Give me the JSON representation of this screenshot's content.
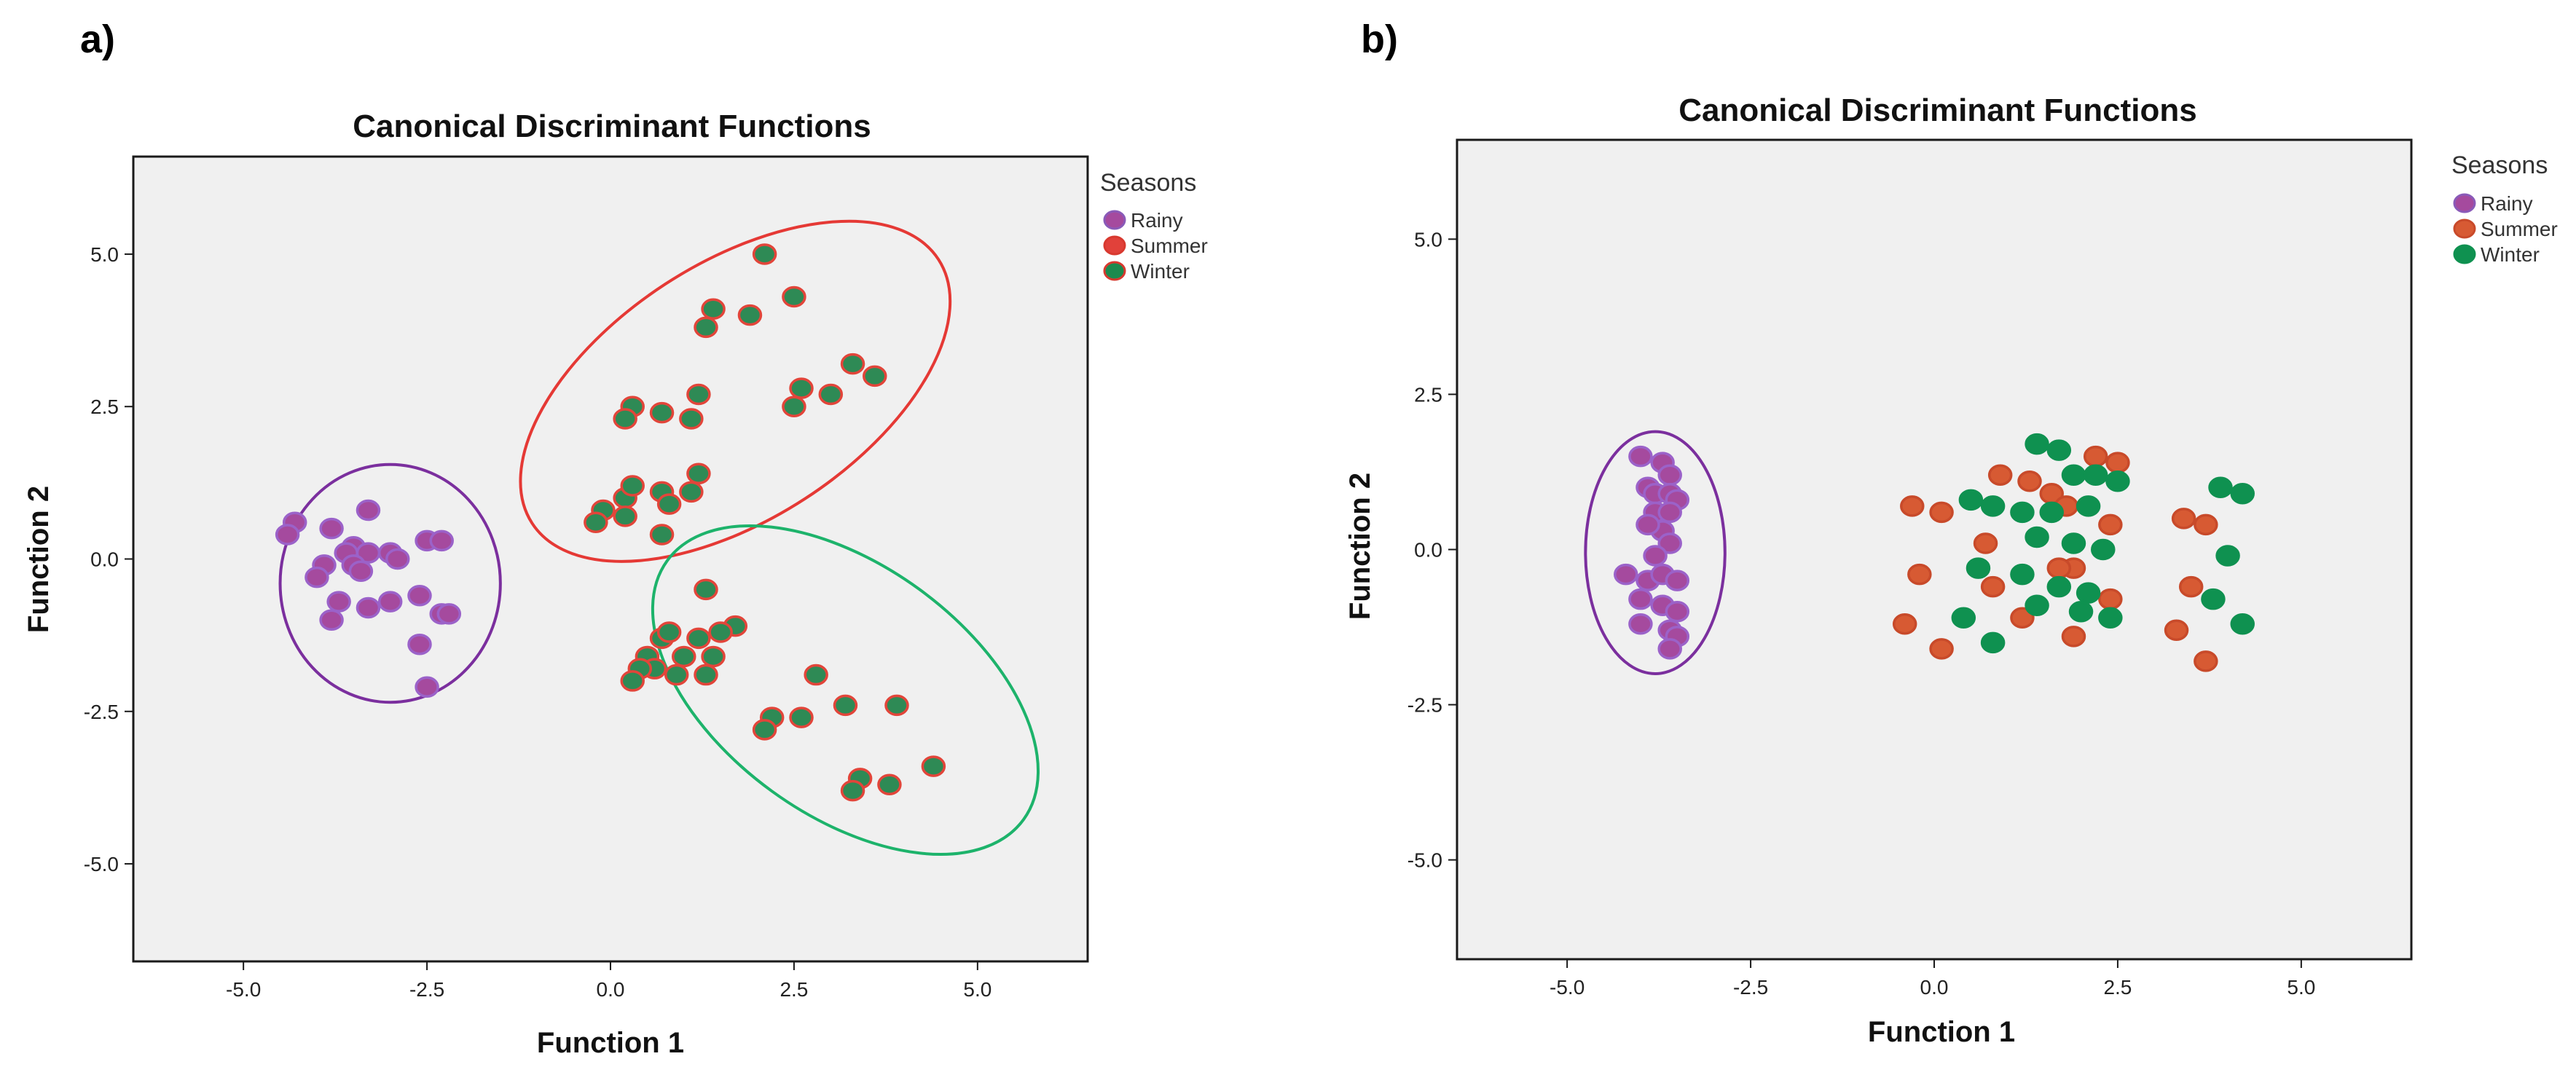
{
  "chart_data": [
    {
      "type": "scatter",
      "panel_label": "a)",
      "title": "Canonical Discriminant Functions",
      "xlabel": "Function 1",
      "ylabel": "Function 2",
      "xlim": [
        -6.5,
        6.5
      ],
      "ylim": [
        -6.6,
        6.6
      ],
      "xticks": [
        -5.0,
        -2.5,
        0.0,
        2.5,
        5.0
      ],
      "yticks": [
        5.0,
        2.5,
        0.0,
        -2.5,
        -5.0
      ],
      "tick_labels_x": [
        "-5.0",
        "-2.5",
        "0.0",
        "2.5",
        "5.0"
      ],
      "tick_labels_y": [
        "5.0",
        "2.5",
        "0.0",
        "-2.5",
        "-5.0"
      ],
      "legend": {
        "title": "Seasons",
        "position": "right",
        "entries": [
          {
            "label": "Rainy",
            "fill": "#a54a9e",
            "stroke": "#8a5ab8"
          },
          {
            "label": "Summer",
            "fill": "#e1413a",
            "stroke": "#d8392f"
          },
          {
            "label": "Winter",
            "fill": "#1d8a4e",
            "stroke": "#1a7a3f"
          }
        ]
      },
      "series": [
        {
          "name": "Rainy",
          "fill": "#a54a9e",
          "stroke": "#9b62c9",
          "points": [
            [
              -4.3,
              0.6
            ],
            [
              -4.4,
              0.4
            ],
            [
              -3.8,
              0.5
            ],
            [
              -3.3,
              0.8
            ],
            [
              -3.5,
              0.2
            ],
            [
              -3.6,
              0.1
            ],
            [
              -3.3,
              0.1
            ],
            [
              -3.0,
              0.1
            ],
            [
              -2.9,
              0.0
            ],
            [
              -2.5,
              0.3
            ],
            [
              -2.3,
              0.3
            ],
            [
              -3.9,
              -0.1
            ],
            [
              -3.5,
              -0.1
            ],
            [
              -3.4,
              -0.2
            ],
            [
              -4.0,
              -0.3
            ],
            [
              -3.7,
              -0.7
            ],
            [
              -3.3,
              -0.8
            ],
            [
              -3.0,
              -0.7
            ],
            [
              -2.6,
              -0.6
            ],
            [
              -2.3,
              -0.9
            ],
            [
              -2.2,
              -0.9
            ],
            [
              -3.8,
              -1.0
            ],
            [
              -2.6,
              -1.4
            ],
            [
              -2.5,
              -2.1
            ]
          ]
        },
        {
          "name": "Summer",
          "fill": "#2e8a55",
          "stroke": "#e2453a",
          "points": [
            [
              2.1,
              5.0
            ],
            [
              2.5,
              4.3
            ],
            [
              1.4,
              4.1
            ],
            [
              1.3,
              3.8
            ],
            [
              1.9,
              4.0
            ],
            [
              3.3,
              3.2
            ],
            [
              3.6,
              3.0
            ],
            [
              2.6,
              2.8
            ],
            [
              3.0,
              2.7
            ],
            [
              2.5,
              2.5
            ],
            [
              0.3,
              2.5
            ],
            [
              0.2,
              2.3
            ],
            [
              0.7,
              2.4
            ],
            [
              1.2,
              2.7
            ],
            [
              1.1,
              2.3
            ],
            [
              -0.1,
              0.8
            ],
            [
              0.2,
              1.0
            ],
            [
              0.3,
              1.2
            ],
            [
              0.7,
              1.1
            ],
            [
              1.1,
              1.1
            ],
            [
              1.2,
              1.4
            ],
            [
              0.8,
              0.9
            ],
            [
              -0.2,
              0.6
            ],
            [
              0.2,
              0.7
            ],
            [
              0.7,
              0.4
            ]
          ]
        },
        {
          "name": "Winter",
          "fill": "#2e8a55",
          "stroke": "#e2453a",
          "points": [
            [
              1.3,
              -0.5
            ],
            [
              0.7,
              -1.3
            ],
            [
              0.8,
              -1.2
            ],
            [
              1.2,
              -1.3
            ],
            [
              1.7,
              -1.1
            ],
            [
              1.5,
              -1.2
            ],
            [
              0.5,
              -1.6
            ],
            [
              1.0,
              -1.6
            ],
            [
              0.6,
              -1.8
            ],
            [
              1.4,
              -1.6
            ],
            [
              0.4,
              -1.8
            ],
            [
              0.3,
              -2.0
            ],
            [
              0.9,
              -1.9
            ],
            [
              1.3,
              -1.9
            ],
            [
              2.8,
              -1.9
            ],
            [
              3.2,
              -2.4
            ],
            [
              3.9,
              -2.4
            ],
            [
              2.2,
              -2.6
            ],
            [
              2.6,
              -2.6
            ],
            [
              2.1,
              -2.8
            ],
            [
              3.4,
              -3.6
            ],
            [
              3.8,
              -3.7
            ],
            [
              4.4,
              -3.4
            ],
            [
              3.3,
              -3.8
            ]
          ]
        }
      ],
      "ellipses": [
        {
          "group": "Rainy",
          "stroke": "#7b2f9e",
          "center": [
            -3.0,
            -0.4
          ],
          "radii": [
            1.5,
            1.95
          ],
          "rotation_deg": 0
        },
        {
          "group": "Summer",
          "stroke": "#e53935",
          "center": [
            1.7,
            2.75
          ],
          "radii": [
            3.3,
            2.1
          ],
          "rotation_deg": 33
        },
        {
          "group": "Winter",
          "stroke": "#1db36b",
          "center": [
            3.2,
            -2.15
          ],
          "radii": [
            3.0,
            2.05
          ],
          "rotation_deg": -36
        }
      ]
    },
    {
      "type": "scatter",
      "panel_label": "b)",
      "title": "Canonical Discriminant Functions",
      "xlabel": "Function 1",
      "ylabel": "Function 2",
      "xlim": [
        -6.5,
        6.5
      ],
      "ylim": [
        -6.6,
        6.6
      ],
      "xticks": [
        -5.0,
        -2.5,
        0.0,
        2.5,
        5.0
      ],
      "yticks": [
        5.0,
        2.5,
        0.0,
        -2.5,
        -5.0
      ],
      "tick_labels_x": [
        "-5.0",
        "-2.5",
        "0.0",
        "2.5",
        "5.0"
      ],
      "tick_labels_y": [
        "5.0",
        "2.5",
        "0.0",
        "-2.5",
        "-5.0"
      ],
      "legend": {
        "title": "Seasons",
        "position": "right",
        "entries": [
          {
            "label": "Rainy",
            "fill": "#a54a9e",
            "stroke": "#8a5ab8"
          },
          {
            "label": "Summer",
            "fill": "#d75a33",
            "stroke": "#c84a2a"
          },
          {
            "label": "Winter",
            "fill": "#0f9150",
            "stroke": "#0f9150"
          }
        ]
      },
      "series": [
        {
          "name": "Rainy",
          "fill": "#a54a9e",
          "stroke": "#9b62c9",
          "points": [
            [
              -4.0,
              1.5
            ],
            [
              -3.7,
              1.4
            ],
            [
              -3.6,
              1.2
            ],
            [
              -3.9,
              1.0
            ],
            [
              -3.8,
              0.9
            ],
            [
              -3.6,
              0.9
            ],
            [
              -3.5,
              0.8
            ],
            [
              -3.8,
              0.6
            ],
            [
              -3.6,
              0.6
            ],
            [
              -3.7,
              0.3
            ],
            [
              -3.9,
              0.4
            ],
            [
              -3.6,
              0.1
            ],
            [
              -3.8,
              -0.1
            ],
            [
              -4.2,
              -0.4
            ],
            [
              -3.9,
              -0.5
            ],
            [
              -3.7,
              -0.4
            ],
            [
              -3.5,
              -0.5
            ],
            [
              -4.0,
              -0.8
            ],
            [
              -3.7,
              -0.9
            ],
            [
              -3.5,
              -1.0
            ],
            [
              -4.0,
              -1.2
            ],
            [
              -3.6,
              -1.3
            ],
            [
              -3.5,
              -1.4
            ],
            [
              -3.6,
              -1.6
            ]
          ]
        },
        {
          "name": "Summer",
          "fill": "#d75a33",
          "stroke": "#c84a2a",
          "points": [
            [
              -0.3,
              0.7
            ],
            [
              0.1,
              0.6
            ],
            [
              0.9,
              1.2
            ],
            [
              1.3,
              1.1
            ],
            [
              2.2,
              1.5
            ],
            [
              2.5,
              1.4
            ],
            [
              1.6,
              0.9
            ],
            [
              1.8,
              0.7
            ],
            [
              2.4,
              0.4
            ],
            [
              3.4,
              0.5
            ],
            [
              3.7,
              0.4
            ],
            [
              1.9,
              -0.3
            ],
            [
              0.7,
              0.1
            ],
            [
              1.7,
              -0.3
            ],
            [
              -0.2,
              -0.4
            ],
            [
              0.8,
              -0.6
            ],
            [
              2.4,
              -0.8
            ],
            [
              3.5,
              -0.6
            ],
            [
              1.2,
              -1.1
            ],
            [
              1.9,
              -1.4
            ],
            [
              -0.4,
              -1.2
            ],
            [
              0.1,
              -1.6
            ],
            [
              3.3,
              -1.3
            ],
            [
              3.7,
              -1.8
            ]
          ]
        },
        {
          "name": "Winter",
          "fill": "#0f9150",
          "stroke": "#0f9150",
          "points": [
            [
              1.4,
              1.7
            ],
            [
              1.7,
              1.6
            ],
            [
              1.9,
              1.2
            ],
            [
              2.2,
              1.2
            ],
            [
              2.5,
              1.1
            ],
            [
              0.5,
              0.8
            ],
            [
              0.8,
              0.7
            ],
            [
              1.2,
              0.6
            ],
            [
              1.6,
              0.6
            ],
            [
              2.1,
              0.7
            ],
            [
              3.9,
              1.0
            ],
            [
              4.2,
              0.9
            ],
            [
              1.4,
              0.2
            ],
            [
              1.9,
              0.1
            ],
            [
              2.3,
              0.0
            ],
            [
              4.0,
              -0.1
            ],
            [
              0.6,
              -0.3
            ],
            [
              1.2,
              -0.4
            ],
            [
              1.7,
              -0.6
            ],
            [
              2.1,
              -0.7
            ],
            [
              2.4,
              -1.1
            ],
            [
              3.8,
              -0.8
            ],
            [
              0.4,
              -1.1
            ],
            [
              0.8,
              -1.5
            ],
            [
              1.4,
              -0.9
            ],
            [
              2.0,
              -1.0
            ],
            [
              4.2,
              -1.2
            ]
          ]
        }
      ],
      "ellipses": [
        {
          "group": "Rainy",
          "stroke": "#7b2f9e",
          "center": [
            -3.8,
            -0.05
          ],
          "radii": [
            0.95,
            1.95
          ],
          "rotation_deg": 0
        }
      ]
    }
  ]
}
